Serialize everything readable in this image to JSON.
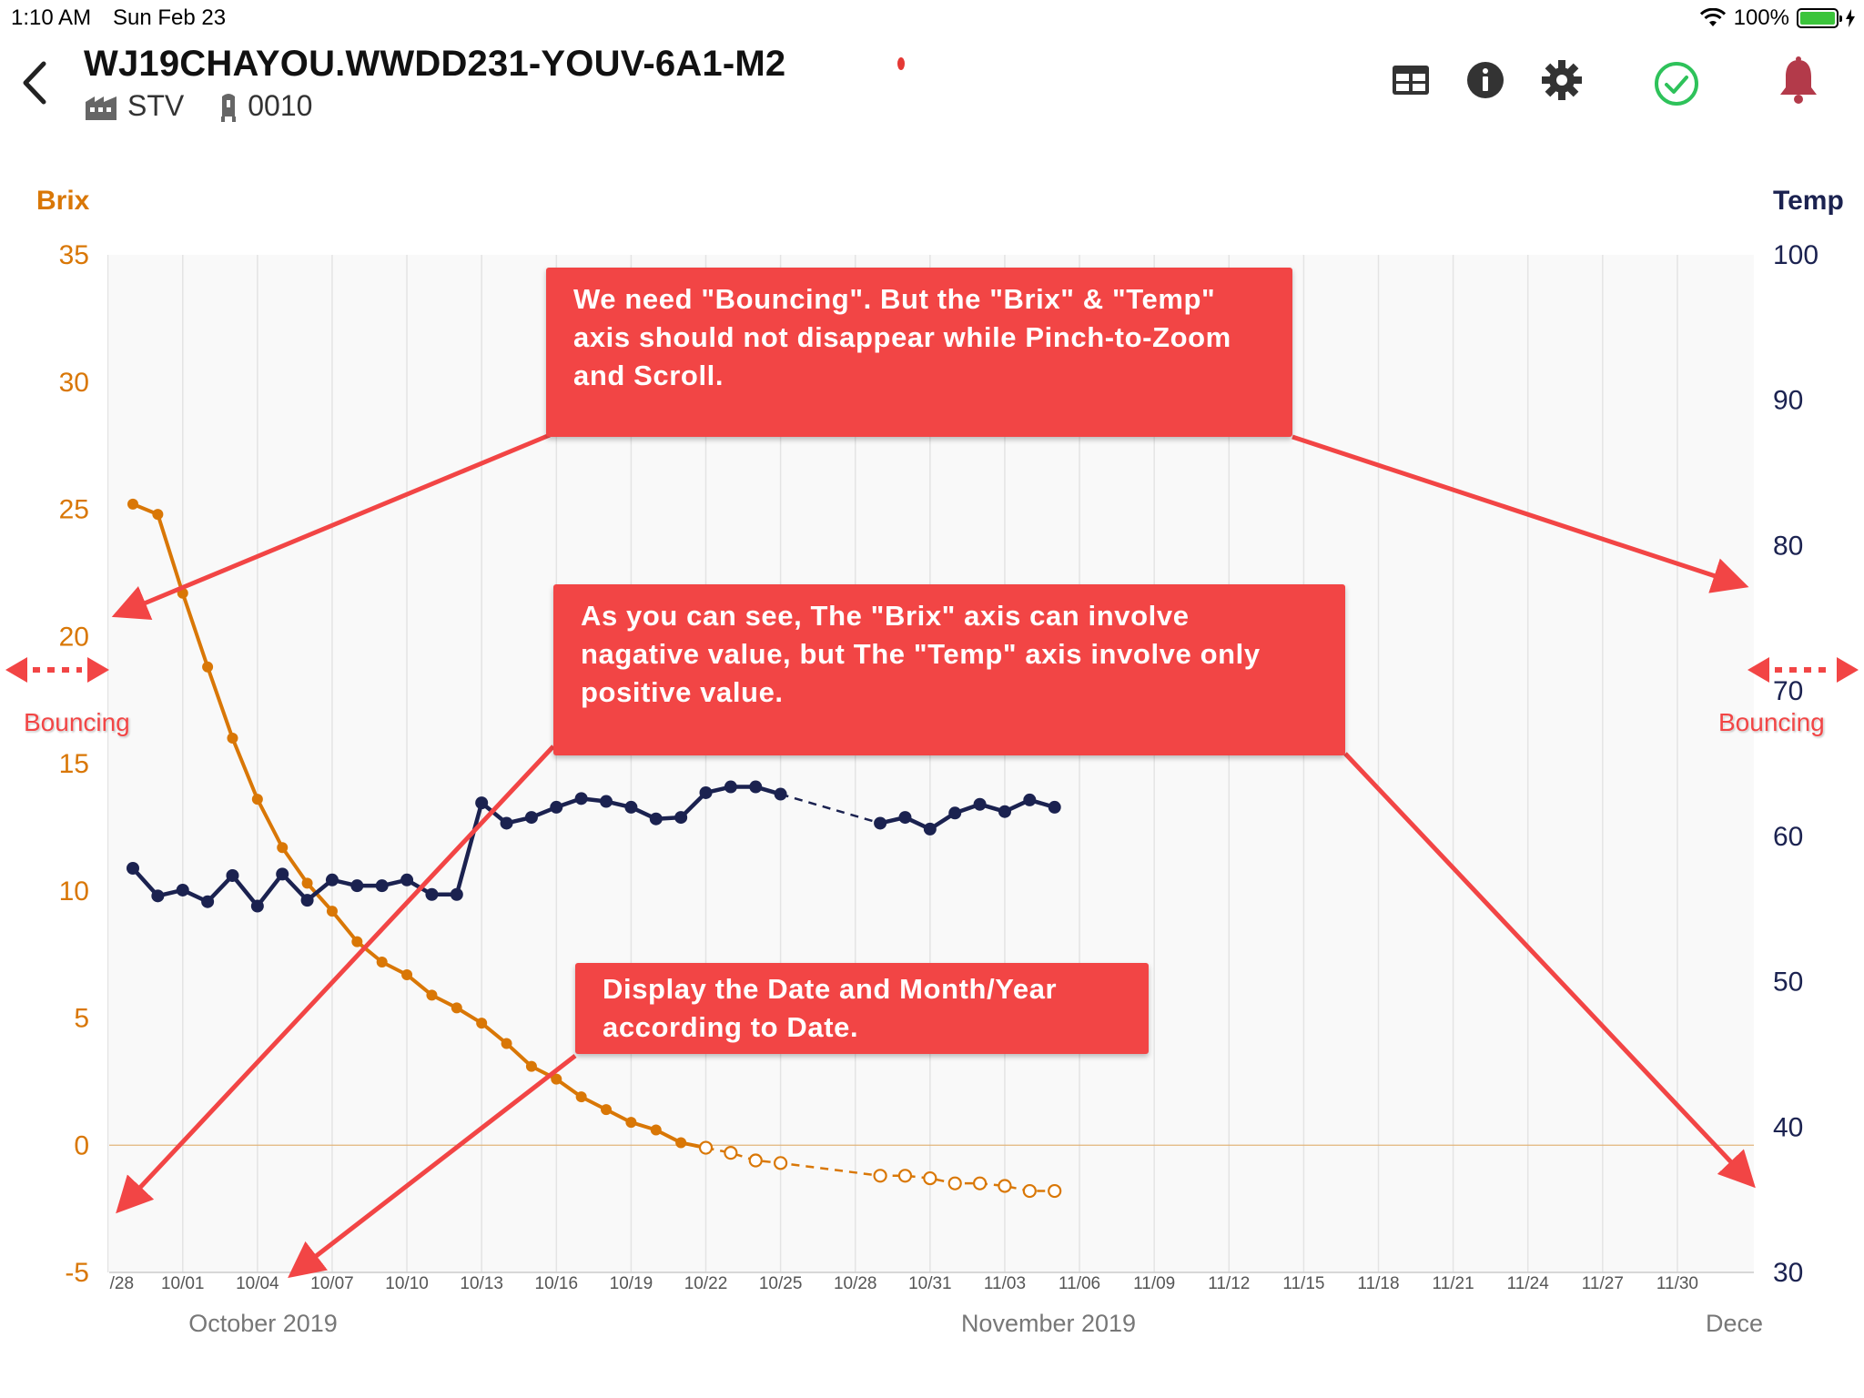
{
  "status_bar": {
    "time": "1:10 AM",
    "date": "Sun Feb 23",
    "battery_text": "100%"
  },
  "header": {
    "title": "WJ19CHAYOU.WWDD231-YOUV-6A1-M2",
    "facility": "STV",
    "tank": "0010",
    "icons": [
      "back-chevron",
      "table-icon",
      "info-icon",
      "gear-icon",
      "check-circle-icon",
      "bell-icon"
    ]
  },
  "colors": {
    "brix": "#d97706",
    "temp": "#1b2250",
    "callout": "#f24545",
    "check": "#2ec25a",
    "bell": "#b33a4a"
  },
  "annotations": {
    "callout_1": [
      "We need \"Bouncing\". But the \"Brix\" & \"Temp\"",
      "axis should not disappear while Pinch-to-Zoom",
      "and Scroll."
    ],
    "callout_2": [
      "As you can see, The \"Brix\" axis can involve",
      "nagative value, but The \"Temp\" axis involve only",
      "positive value."
    ],
    "callout_3": [
      "Display the Date and Month/Year",
      "according to Date."
    ],
    "bouncing_label": "Bouncing"
  },
  "chart_data": {
    "type": "line",
    "left_axis": {
      "title": "Brix",
      "ticks": [
        "35",
        "30",
        "25",
        "20",
        "15",
        "10",
        "5",
        "0",
        "-5"
      ],
      "ylim": [
        -5,
        35
      ]
    },
    "right_axis": {
      "title": "Temp",
      "ticks": [
        "100",
        "90",
        "80",
        "70",
        "60",
        "50",
        "40",
        "30"
      ],
      "ylim": [
        30,
        100
      ]
    },
    "x_ticks": [
      "/28",
      "10/01",
      "10/04",
      "10/07",
      "10/10",
      "10/13",
      "10/16",
      "10/19",
      "10/22",
      "10/25",
      "10/28",
      "10/31",
      "11/03",
      "11/06",
      "11/09",
      "11/12",
      "11/15",
      "11/18",
      "11/21",
      "11/24",
      "11/27",
      "11/30"
    ],
    "month_labels": [
      "October 2019",
      "November 2019",
      "Dece"
    ],
    "grid": true,
    "series": [
      {
        "name": "Brix",
        "axis": "left",
        "measured": {
          "x": [
            "2019-09-29",
            "2019-09-30",
            "2019-10-01",
            "2019-10-02",
            "2019-10-03",
            "2019-10-04",
            "2019-10-05",
            "2019-10-06",
            "2019-10-07",
            "2019-10-08",
            "2019-10-09",
            "2019-10-10",
            "2019-10-11",
            "2019-10-12",
            "2019-10-13",
            "2019-10-14",
            "2019-10-15",
            "2019-10-16",
            "2019-10-17",
            "2019-10-18",
            "2019-10-19",
            "2019-10-20",
            "2019-10-21"
          ],
          "y": [
            25.2,
            24.8,
            21.7,
            18.8,
            16.0,
            13.6,
            11.7,
            10.3,
            9.2,
            8.0,
            7.2,
            6.7,
            5.9,
            5.4,
            4.8,
            4.0,
            3.1,
            2.6,
            1.9,
            1.4,
            0.9,
            0.6,
            0.1
          ]
        },
        "forecast": {
          "x": [
            "2019-10-22",
            "2019-10-23",
            "2019-10-24",
            "2019-10-25",
            "2019-10-29",
            "2019-10-30",
            "2019-10-31",
            "2019-11-01",
            "2019-11-02",
            "2019-11-03",
            "2019-11-04",
            "2019-11-05"
          ],
          "y": [
            -0.1,
            -0.3,
            -0.6,
            -0.7,
            -1.2,
            -1.2,
            -1.3,
            -1.5,
            -1.5,
            -1.6,
            -1.8,
            -1.8
          ]
        }
      },
      {
        "name": "Temp",
        "axis": "right",
        "measured": {
          "x": [
            "2019-09-29",
            "2019-09-30",
            "2019-10-01",
            "2019-10-02",
            "2019-10-03",
            "2019-10-04",
            "2019-10-05",
            "2019-10-06",
            "2019-10-07",
            "2019-10-08",
            "2019-10-09",
            "2019-10-10",
            "2019-10-11",
            "2019-10-12",
            "2019-10-13",
            "2019-10-14",
            "2019-10-15",
            "2019-10-16",
            "2019-10-17",
            "2019-10-18",
            "2019-10-19",
            "2019-10-20",
            "2019-10-21",
            "2019-10-22",
            "2019-10-23",
            "2019-10-24",
            "2019-10-25"
          ],
          "y": [
            57.8,
            55.9,
            56.3,
            55.5,
            57.3,
            55.2,
            57.4,
            55.6,
            57.0,
            56.6,
            56.6,
            57.0,
            56.0,
            56.0,
            62.3,
            60.9,
            61.3,
            62.0,
            62.6,
            62.4,
            62.0,
            61.2,
            61.3,
            63.0,
            63.4,
            63.4,
            62.9
          ]
        },
        "projection": {
          "x": [
            "2019-10-25",
            "2019-10-29"
          ],
          "y": [
            62.9,
            60.9
          ]
        },
        "later": {
          "x": [
            "2019-10-29",
            "2019-10-30",
            "2019-10-31",
            "2019-11-01",
            "2019-11-02",
            "2019-11-03",
            "2019-11-04",
            "2019-11-05"
          ],
          "y": [
            60.9,
            61.3,
            60.5,
            61.6,
            62.2,
            61.7,
            62.5,
            62.0
          ]
        }
      }
    ]
  }
}
